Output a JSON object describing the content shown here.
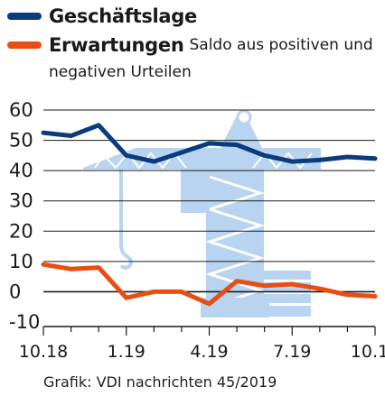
{
  "chart_data": {
    "type": "line",
    "legend": [
      {
        "name": "Geschäftslage",
        "note": "",
        "color": "#0a3b7c"
      },
      {
        "name": "Erwartungen",
        "note": "Saldo aus positiven und negativen Urteilen",
        "color": "#e84e10"
      }
    ],
    "x": [
      "10.18",
      "11.18",
      "12.18",
      "1.19",
      "2.19",
      "3.19",
      "4.19",
      "5.19",
      "6.19",
      "7.19",
      "8.19",
      "9.19",
      "10.19"
    ],
    "x_tick_labels": [
      "10.18",
      "1.19",
      "4.19",
      "7.19",
      "10.19"
    ],
    "series": [
      {
        "name": "Geschäftslage",
        "color": "#0a3b7c",
        "values": [
          52.5,
          51.5,
          55,
          45,
          43,
          46,
          49,
          48.5,
          45,
          43,
          43.5,
          44.5,
          44
        ]
      },
      {
        "name": "Erwartungen",
        "color": "#e84e10",
        "values": [
          9,
          7.5,
          8,
          -2,
          0,
          0,
          -4,
          3.5,
          2,
          2.5,
          1,
          -1,
          -1.5
        ]
      }
    ],
    "y_ticks": [
      60,
      50,
      40,
      30,
      20,
      10,
      0,
      -10
    ],
    "ylim": [
      -10,
      60
    ],
    "grid": true,
    "background_illustration": "construction-crane",
    "illustration_color": "#b8d4f0"
  },
  "source": "Grafik: VDI nachrichten 45/2019"
}
